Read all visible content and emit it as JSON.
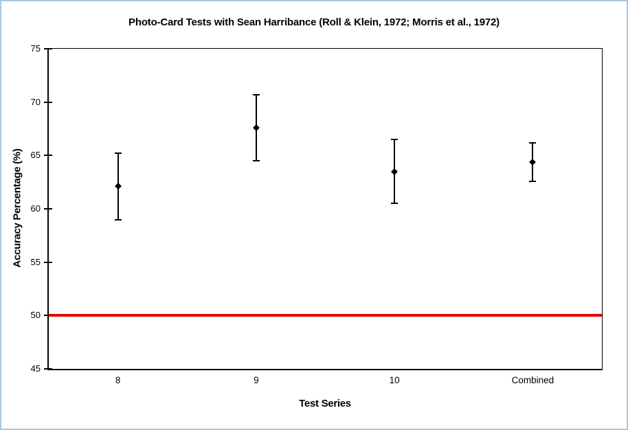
{
  "window": {
    "background_color": "#ffffff",
    "frame_border_color": "#a9c6e2"
  },
  "chart_data": {
    "type": "scatter",
    "title": "Photo-Card Tests with Sean Harribance (Roll & Klein, 1972; Morris et al., 1972)",
    "xlabel": "Test Series",
    "ylabel": "Accuracy Percentage (%)",
    "categories": [
      "8",
      "9",
      "10",
      "Combined"
    ],
    "series": [
      {
        "name": "Accuracy Percentage",
        "values": [
          62.1,
          67.6,
          63.5,
          64.4
        ],
        "error_upper": [
          65.2,
          70.7,
          66.5,
          66.2
        ],
        "error_lower": [
          59.0,
          64.5,
          60.5,
          62.6
        ],
        "marker": "diamond",
        "color": "#000000"
      }
    ],
    "reference_line": {
      "y": 50,
      "color": "#e60000",
      "thickness_px": 4
    },
    "ylim": [
      45,
      75
    ],
    "y_ticks": [
      75,
      70,
      65,
      60,
      55,
      50,
      45
    ],
    "grid": false,
    "legend": "none",
    "plot_background": "#ffffff",
    "axis_color": "#000000"
  }
}
